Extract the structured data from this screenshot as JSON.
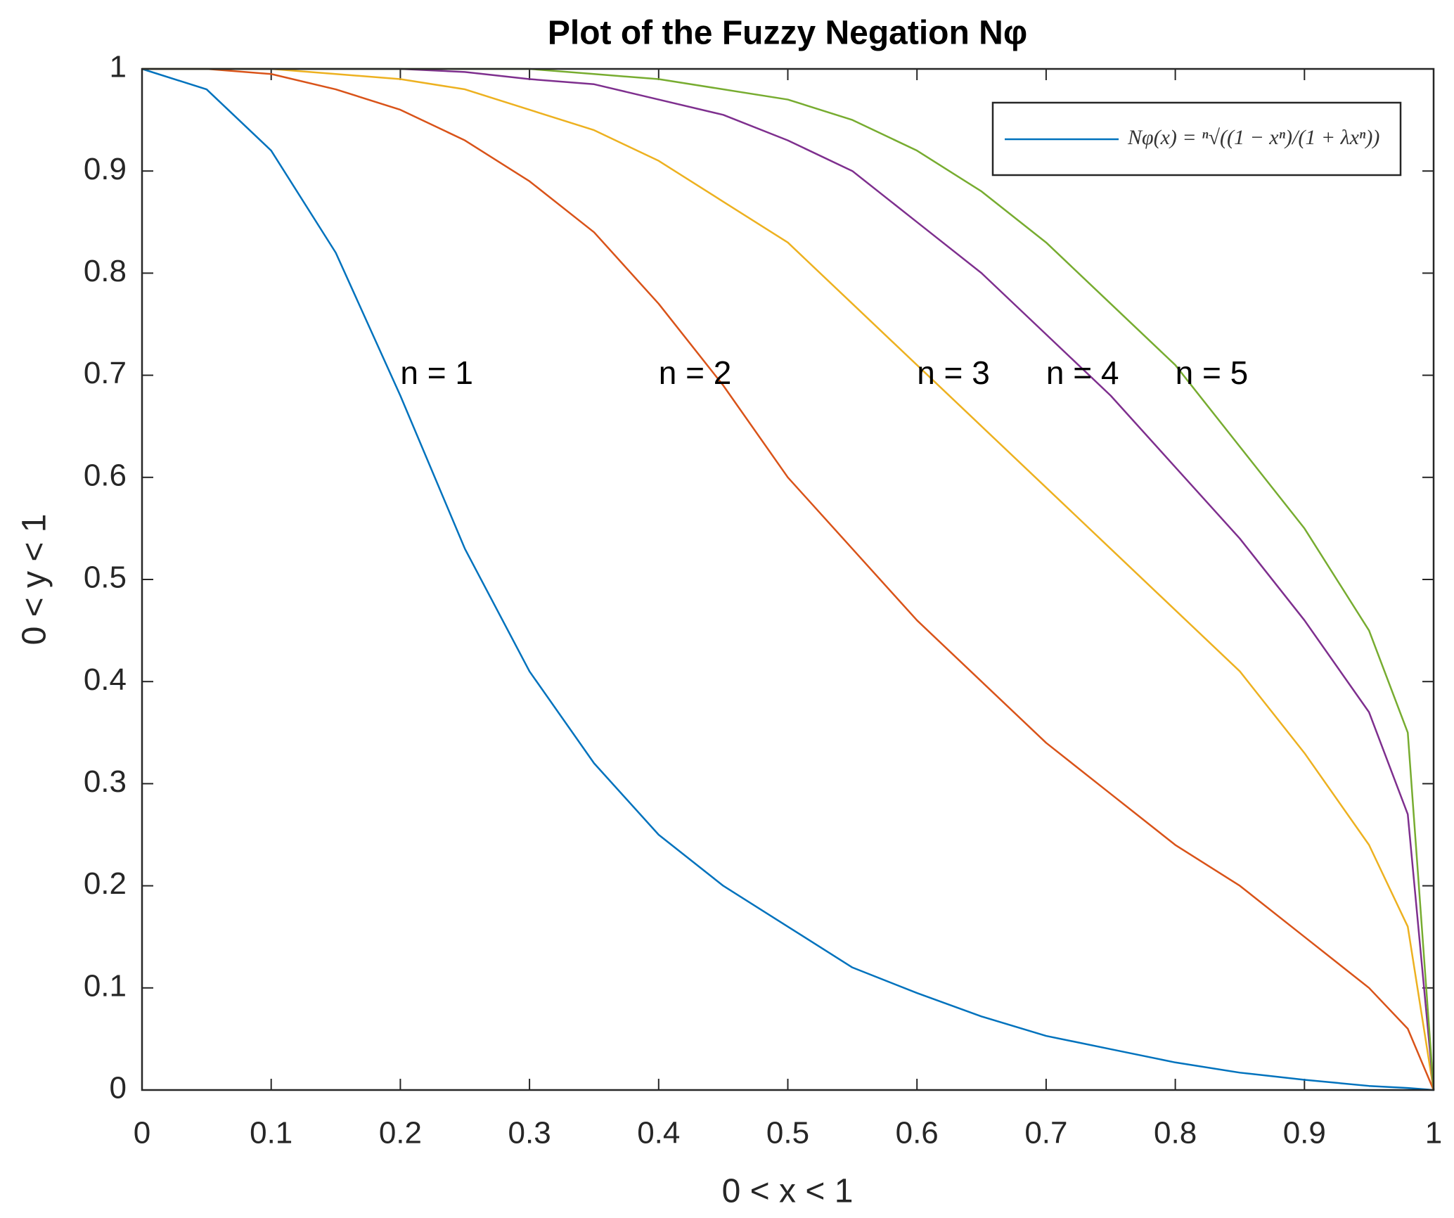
{
  "chart_data": {
    "type": "line",
    "title": "Plot of the Fuzzy Negation Nφ",
    "x_label": "0 < x < 1",
    "y_label": "0 < y < 1",
    "x": [
      0,
      0.05,
      0.1,
      0.15,
      0.2,
      0.25,
      0.3,
      0.35,
      0.4,
      0.45,
      0.5,
      0.55,
      0.6,
      0.65,
      0.7,
      0.75,
      0.8,
      0.85,
      0.9,
      0.95,
      0.98,
      1
    ],
    "series": [
      {
        "name": "Nφ(x) = ⁿ√((1 − xⁿ)/(1 + λxⁿ))",
        "color": "#0072BD",
        "values": [
          1,
          0.98,
          0.92,
          0.82,
          0.68,
          0.53,
          0.41,
          0.32,
          0.25,
          0.2,
          0.16,
          0.12,
          0.095,
          0.072,
          0.053,
          0.04,
          0.027,
          0.017,
          0.01,
          0.004,
          0.002,
          0
        ]
      },
      {
        "color": "#D95319",
        "values": [
          1,
          1,
          0.995,
          0.98,
          0.96,
          0.93,
          0.89,
          0.84,
          0.77,
          0.69,
          0.6,
          0.53,
          0.46,
          0.4,
          0.34,
          0.29,
          0.24,
          0.2,
          0.15,
          0.1,
          0.06,
          0
        ]
      },
      {
        "color": "#EDB120",
        "values": [
          1,
          1,
          1,
          0.995,
          0.99,
          0.98,
          0.96,
          0.94,
          0.91,
          0.87,
          0.83,
          0.77,
          0.71,
          0.65,
          0.59,
          0.53,
          0.47,
          0.41,
          0.33,
          0.24,
          0.16,
          0
        ]
      },
      {
        "color": "#7E2F8E",
        "values": [
          1,
          1,
          1,
          1,
          1,
          0.997,
          0.99,
          0.985,
          0.97,
          0.955,
          0.93,
          0.9,
          0.85,
          0.8,
          0.74,
          0.68,
          0.61,
          0.54,
          0.46,
          0.37,
          0.27,
          0
        ]
      },
      {
        "color": "#77AC30",
        "values": [
          1,
          1,
          1,
          1,
          1,
          1,
          1,
          0.995,
          0.99,
          0.98,
          0.97,
          0.95,
          0.92,
          0.88,
          0.83,
          0.77,
          0.71,
          0.63,
          0.55,
          0.45,
          0.35,
          0
        ]
      }
    ],
    "annotations": [
      "n = 1",
      "n = 2",
      "n = 3",
      "n = 4",
      "n = 5"
    ],
    "xlim": [
      0,
      1
    ],
    "ylim": [
      0,
      1
    ],
    "xticks": [
      0,
      0.1,
      0.2,
      0.3,
      0.4,
      0.5,
      0.6,
      0.7,
      0.8,
      0.9,
      1
    ],
    "yticks": [
      0,
      0.1,
      0.2,
      0.3,
      0.4,
      0.5,
      0.6,
      0.7,
      0.8,
      0.9,
      1
    ],
    "grid": false,
    "legend": "top-right"
  }
}
